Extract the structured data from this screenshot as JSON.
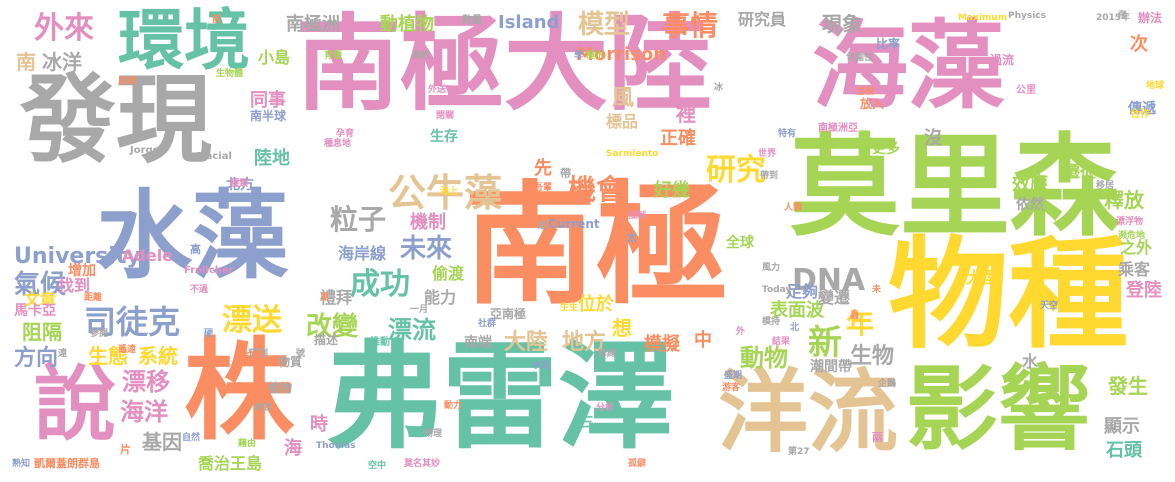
{
  "words": [
    {
      "text": "南極大陸",
      "color": "#e38fc0"
    },
    {
      "text": "海藻",
      "color": "#e38fc0"
    },
    {
      "text": "發現",
      "color": "#a8a8a8"
    },
    {
      "text": "水藻",
      "color": "#8d9fcc"
    },
    {
      "text": "南極",
      "color": "#fa8d62"
    },
    {
      "text": "莫里森",
      "color": "#a6d555"
    },
    {
      "text": "物種",
      "color": "#ffd92f"
    },
    {
      "text": "弗雷澤",
      "color": "#66c2a5"
    },
    {
      "text": "株",
      "color": "#fa8d62"
    },
    {
      "text": "說",
      "color": "#e38fc0"
    },
    {
      "text": "洋流",
      "color": "#e5c494"
    },
    {
      "text": "影響",
      "color": "#a6d555"
    },
    {
      "text": "環境",
      "color": "#66c2a5"
    },
    {
      "text": "外來",
      "color": "#e38fc0"
    },
    {
      "text": "南",
      "color": "#e5c494"
    },
    {
      "text": "冰洋",
      "color": "#a8a8a8"
    },
    {
      "text": "南極洲",
      "color": "#a8a8a8"
    },
    {
      "text": "動植物",
      "color": "#a6d555"
    },
    {
      "text": "Island",
      "color": "#8d9fcc"
    },
    {
      "text": "模型",
      "color": "#e5c494"
    },
    {
      "text": "事情",
      "color": "#fa8d62"
    },
    {
      "text": "研究員",
      "color": "#a8a8a8"
    },
    {
      "text": "現象",
      "color": "#a8a8a8"
    },
    {
      "text": "Morrison",
      "color": "#fa8d62"
    },
    {
      "text": "公牛藻",
      "color": "#e5c494"
    },
    {
      "text": "機會",
      "color": "#fa8d62"
    },
    {
      "text": "研究",
      "color": "#ffd92f"
    },
    {
      "text": "好幾",
      "color": "#a6d555"
    },
    {
      "text": "粒子",
      "color": "#a8a8a8"
    },
    {
      "text": "未來",
      "color": "#8d9fcc"
    },
    {
      "text": "成功",
      "color": "#66c2a5"
    },
    {
      "text": "機制",
      "color": "#e38fc0"
    },
    {
      "text": "司徒克",
      "color": "#8d9fcc"
    },
    {
      "text": "漂送",
      "color": "#ffd92f"
    },
    {
      "text": "改變",
      "color": "#a6d555"
    },
    {
      "text": "漂流",
      "color": "#66c2a5"
    },
    {
      "text": "University",
      "color": "#8d9fcc"
    },
    {
      "text": "Adele",
      "color": "#e38fc0"
    },
    {
      "text": "氣候",
      "color": "#8d9fcc"
    },
    {
      "text": "阻隔",
      "color": "#a6d555"
    },
    {
      "text": "方向",
      "color": "#8d9fcc"
    },
    {
      "text": "生態",
      "color": "#ffd92f"
    },
    {
      "text": "系統",
      "color": "#ffd92f"
    },
    {
      "text": "漂移",
      "color": "#e38fc0"
    },
    {
      "text": "海洋",
      "color": "#e38fc0"
    },
    {
      "text": "基因",
      "color": "#a8a8a8"
    },
    {
      "text": "喬治王島",
      "color": "#a6d555"
    },
    {
      "text": "DNA",
      "color": "#a8a8a8"
    },
    {
      "text": "大陸",
      "color": "#e5c494"
    },
    {
      "text": "地方",
      "color": "#e5c494"
    },
    {
      "text": "模擬",
      "color": "#fa8d62"
    },
    {
      "text": "動物",
      "color": "#a6d555"
    },
    {
      "text": "新",
      "color": "#a6d555"
    },
    {
      "text": "生物",
      "color": "#a8a8a8"
    },
    {
      "text": "年",
      "color": "#ffd92f"
    },
    {
      "text": "表面波",
      "color": "#a6d555"
    },
    {
      "text": "大型",
      "color": "#ffd92f"
    },
    {
      "text": "效應",
      "color": "#a6d555"
    },
    {
      "text": "遷徙",
      "color": "#a6d555"
    },
    {
      "text": "釋放",
      "color": "#a6d555"
    },
    {
      "text": "潮間帶",
      "color": "#a8a8a8"
    },
    {
      "text": "發生",
      "color": "#a6d555"
    },
    {
      "text": "顯示",
      "color": "#a8a8a8"
    },
    {
      "text": "石頭",
      "color": "#66c2a5"
    },
    {
      "text": "登陸",
      "color": "#e38fc0"
    },
    {
      "text": "乘客",
      "color": "#a8a8a8"
    },
    {
      "text": "之外",
      "color": "#a6d555"
    },
    {
      "text": "變遷",
      "color": "#a8a8a8"
    },
    {
      "text": "足夠",
      "color": "#8d9fcc"
    },
    {
      "text": "全球",
      "color": "#a6d555"
    },
    {
      "text": "小島",
      "color": "#a6d555"
    },
    {
      "text": "同事",
      "color": "#e38fc0"
    },
    {
      "text": "陸地",
      "color": "#66c2a5"
    },
    {
      "text": "北方",
      "color": "#8d9fcc"
    },
    {
      "text": "風",
      "color": "#e5c494"
    },
    {
      "text": "裡",
      "color": "#e38fc0"
    },
    {
      "text": "生存",
      "color": "#66c2a5"
    },
    {
      "text": "正確",
      "color": "#fa8d62"
    },
    {
      "text": "標品",
      "color": "#e5c494"
    },
    {
      "text": "海岸線",
      "color": "#8d9fcc"
    },
    {
      "text": "禮拜",
      "color": "#a8a8a8"
    },
    {
      "text": "能力",
      "color": "#a8a8a8"
    },
    {
      "text": "偷渡",
      "color": "#a6d555"
    },
    {
      "text": "先",
      "color": "#fa8d62"
    },
    {
      "text": "找到",
      "color": "#e38fc0"
    },
    {
      "text": "增加",
      "color": "#fa8d62"
    },
    {
      "text": "文章",
      "color": "#ffd92f"
    },
    {
      "text": "馬卡亞",
      "color": "#e38fc0"
    },
    {
      "text": "時",
      "color": "#e38fc0"
    },
    {
      "text": "海",
      "color": "#e38fc0"
    },
    {
      "text": "水",
      "color": "#a8a8a8"
    },
    {
      "text": "南端",
      "color": "#a8a8a8"
    },
    {
      "text": "位於",
      "color": "#ffd92f"
    },
    {
      "text": "想",
      "color": "#ffd92f"
    },
    {
      "text": "中",
      "color": "#fa8d62"
    },
    {
      "text": "更多",
      "color": "#a6d555"
    },
    {
      "text": "依然",
      "color": "#a8a8a8"
    },
    {
      "text": "沒",
      "color": "#a8a8a8"
    },
    {
      "text": "次",
      "color": "#fa8d62"
    },
    {
      "text": "南極洲亞",
      "color": "#e38fc0"
    },
    {
      "text": "傳遞",
      "color": "#8d9fcc"
    },
    {
      "text": "辦法",
      "color": "#e38fc0"
    },
    {
      "text": "Jorge",
      "color": "#a8a8a8"
    },
    {
      "text": "Glacial",
      "color": "#a8a8a8"
    },
    {
      "text": "Frolicher",
      "color": "#e38fc0"
    },
    {
      "text": "Current",
      "color": "#8d9fcc"
    },
    {
      "text": "Sarmiento",
      "color": "#ffd92f"
    },
    {
      "text": "Thomas",
      "color": "#8d9fcc"
    },
    {
      "text": "Maximum",
      "color": "#ffd92f"
    },
    {
      "text": "Physics",
      "color": "#a8a8a8"
    },
    {
      "text": "2015年",
      "color": "#a8a8a8"
    },
    {
      "text": "Today",
      "color": "#a8a8a8"
    },
    {
      "text": "種類",
      "color": "#e38fc0"
    },
    {
      "text": "更",
      "color": "#fa8d62"
    },
    {
      "text": "描述",
      "color": "#a8a8a8"
    },
    {
      "text": "推動",
      "color": "#66c2a5"
    },
    {
      "text": "亞南極",
      "color": "#a8a8a8"
    },
    {
      "text": "植物",
      "color": "#a8a8a8"
    },
    {
      "text": "物質",
      "color": "#a8a8a8"
    },
    {
      "text": "預測",
      "color": "#a8a8a8"
    },
    {
      "text": "差異",
      "color": "#fa8d62"
    },
    {
      "text": "凱爾蓋朗群島",
      "color": "#fa8d62"
    },
    {
      "text": "熟知",
      "color": "#8d9fcc"
    },
    {
      "text": "自然",
      "color": "#8d9fcc"
    },
    {
      "text": "藉由",
      "color": "#a6d555"
    },
    {
      "text": "莫名其妙",
      "color": "#e38fc0"
    },
    {
      "text": "空中",
      "color": "#66c2a5"
    },
    {
      "text": "孤僻",
      "color": "#fa8d62"
    },
    {
      "text": "第27",
      "color": "#a8a8a8"
    },
    {
      "text": "數量",
      "color": "#a8a8a8"
    },
    {
      "text": "前",
      "color": "#fa8d62"
    },
    {
      "text": "屏障",
      "color": "#fa8d62"
    },
    {
      "text": "生物體",
      "color": "#a6d555"
    },
    {
      "text": "南半球",
      "color": "#8d9fcc"
    },
    {
      "text": "比率",
      "color": "#8d9fcc"
    },
    {
      "text": "過流",
      "color": "#e38fc0"
    },
    {
      "text": "公里",
      "color": "#e38fc0"
    },
    {
      "text": "放入",
      "color": "#fa8d62"
    },
    {
      "text": "合作",
      "color": "#ffd92f"
    },
    {
      "text": "地球",
      "color": "#ffd92f"
    },
    {
      "text": "漂浮物",
      "color": "#e38fc0"
    },
    {
      "text": "瀕危地",
      "color": "#a6d555"
    },
    {
      "text": "天空",
      "color": "#8d9fcc"
    },
    {
      "text": "北",
      "color": "#8d9fcc"
    },
    {
      "text": "水域",
      "color": "#8d9fcc"
    },
    {
      "text": "企鵝",
      "color": "#a8a8a8"
    },
    {
      "text": "世界",
      "color": "#e38fc0"
    },
    {
      "text": "分析",
      "color": "#e38fc0"
    },
    {
      "text": "動力",
      "color": "#fa8d62"
    },
    {
      "text": "物理",
      "color": "#a8a8a8"
    },
    {
      "text": "三",
      "color": "#66c2a5"
    },
    {
      "text": "風力",
      "color": "#a8a8a8"
    },
    {
      "text": "地衣",
      "color": "#a8a8a8"
    },
    {
      "text": "盛期",
      "color": "#8d9fcc"
    },
    {
      "text": "游客",
      "color": "#fa8d62"
    },
    {
      "text": "片",
      "color": "#fa8d62"
    },
    {
      "text": "太",
      "color": "#8d9fcc"
    },
    {
      "text": "兩",
      "color": "#e38fc0"
    },
    {
      "text": "帶",
      "color": "#a8a8a8"
    },
    {
      "text": "一月",
      "color": "#a8a8a8"
    },
    {
      "text": "帶到",
      "color": "#a8a8a8"
    },
    {
      "text": "距離",
      "color": "#fa8d62"
    },
    {
      "text": "遙遠",
      "color": "#fa8d62"
    },
    {
      "text": "參閱",
      "color": "#a8a8a8"
    },
    {
      "text": "不過",
      "color": "#e38fc0"
    },
    {
      "text": "海上",
      "color": "#ffd92f"
    },
    {
      "text": "吾輩",
      "color": "#fa8d62"
    },
    {
      "text": "抵制",
      "color": "#e38fc0"
    },
    {
      "text": "孕育",
      "color": "#e38fc0"
    },
    {
      "text": "種息地",
      "color": "#e38fc0"
    },
    {
      "text": "海豹",
      "color": "#a8a8a8"
    },
    {
      "text": "育種",
      "color": "#a6d555"
    },
    {
      "text": "外送",
      "color": "#e38fc0"
    },
    {
      "text": "移居",
      "color": "#a8a8a8"
    },
    {
      "text": "生根",
      "color": "#fa8d62"
    },
    {
      "text": "包圍住",
      "color": "#a8a8a8"
    },
    {
      "text": "特有",
      "color": "#8d9fcc"
    },
    {
      "text": "結果",
      "color": "#e38fc0"
    },
    {
      "text": "人類",
      "color": "#fa8d62"
    },
    {
      "text": "冰",
      "color": "#a8a8a8"
    },
    {
      "text": "極水",
      "color": "#a6d555"
    },
    {
      "text": "學",
      "color": "#8d9fcc"
    },
    {
      "text": "閉關",
      "color": "#e38fc0"
    },
    {
      "text": "社群",
      "color": "#8d9fcc"
    },
    {
      "text": "生生",
      "color": "#ffd92f"
    },
    {
      "text": "修練",
      "color": "#a8a8a8"
    },
    {
      "text": "飛",
      "color": "#a8a8a8"
    },
    {
      "text": "未",
      "color": "#fa8d62"
    },
    {
      "text": "外",
      "color": "#e38fc0"
    },
    {
      "text": "遠",
      "color": "#a8a8a8"
    },
    {
      "text": "硬",
      "color": "#8d9fcc"
    },
    {
      "text": "號",
      "color": "#a8a8a8"
    },
    {
      "text": "高",
      "color": "#8d9fcc"
    },
    {
      "text": "模持",
      "color": "#a8a8a8"
    },
    {
      "text": "蟲",
      "color": "#fa8d62"
    },
    {
      "text": "起",
      "color": "#a8a8a8"
    }
  ]
}
